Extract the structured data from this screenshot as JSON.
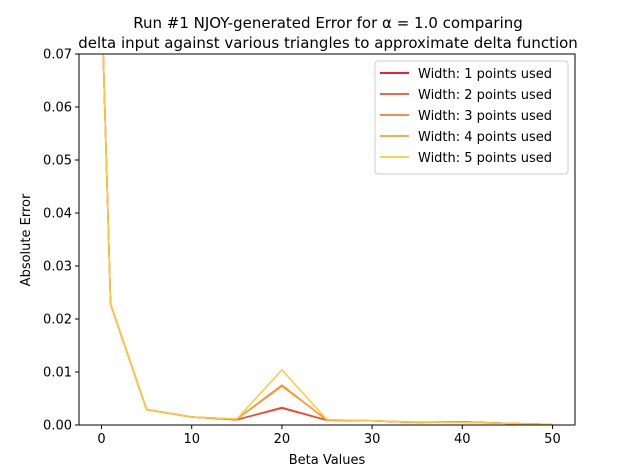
{
  "chart_data": {
    "type": "line",
    "title_line1": "Run #1 NJOY-generated Error for α = 1.0 comparing",
    "title_line2": "delta input against various triangles to approximate delta function",
    "xlabel": "Beta Values",
    "ylabel": "Absolute Error",
    "xlim": [
      -2.5,
      52.5
    ],
    "ylim": [
      0,
      0.07
    ],
    "xticks": [
      0,
      10,
      20,
      30,
      40,
      50
    ],
    "yticks": [
      0.0,
      0.01,
      0.02,
      0.03,
      0.04,
      0.05,
      0.06,
      0.07
    ],
    "ytick_labels": [
      "0.00",
      "0.01",
      "0.02",
      "0.03",
      "0.04",
      "0.05",
      "0.06",
      "0.07"
    ],
    "grid": false,
    "legend_position": "top-right",
    "x": [
      0.1,
      1,
      5,
      10,
      15,
      20,
      25,
      30,
      35,
      40,
      45,
      50
    ],
    "series": [
      {
        "name": "Width: 1 points used",
        "color": "#e8001c",
        "values": [
          0.075,
          0.0228,
          0.0029,
          0.0015,
          0.001,
          0.0032,
          0.0009,
          0.0008,
          0.0005,
          0.0006,
          0.0003,
          0.0001
        ]
      },
      {
        "name": "Width: 2 points used",
        "color": "#f04f2c",
        "values": [
          0.075,
          0.0228,
          0.0029,
          0.0015,
          0.001,
          0.0033,
          0.0009,
          0.0008,
          0.0005,
          0.0006,
          0.0003,
          0.0001
        ]
      },
      {
        "name": "Width: 3 points used",
        "color": "#f47c30",
        "values": [
          0.075,
          0.0228,
          0.0029,
          0.0015,
          0.0011,
          0.0075,
          0.0009,
          0.0008,
          0.0005,
          0.0006,
          0.0003,
          0.0001
        ]
      },
      {
        "name": "Width: 4 points used",
        "color": "#f8a030",
        "values": [
          0.075,
          0.0228,
          0.0029,
          0.0015,
          0.0011,
          0.0073,
          0.001,
          0.0008,
          0.0005,
          0.0005,
          0.0003,
          0.0001
        ]
      },
      {
        "name": "Width: 5 points used",
        "color": "#fec93b",
        "values": [
          0.075,
          0.0228,
          0.0029,
          0.0015,
          0.0011,
          0.0104,
          0.001,
          0.0008,
          0.0006,
          0.0005,
          0.0003,
          0.0001
        ]
      }
    ]
  }
}
